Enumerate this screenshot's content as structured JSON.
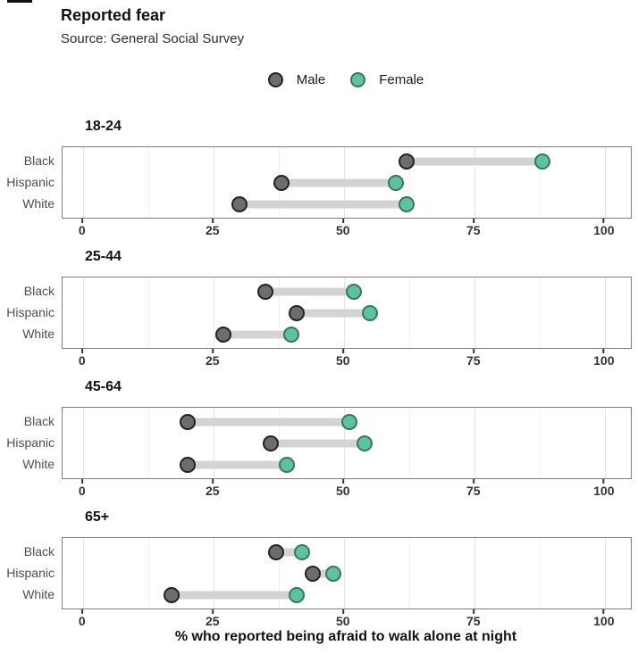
{
  "header": {
    "title": "Reported fear",
    "subtitle": "Source: General Social Survey"
  },
  "legend": {
    "items": [
      {
        "label": "Male",
        "fill": "#6d6d6d",
        "stroke": "#222222"
      },
      {
        "label": "Female",
        "fill": "#5cc3a1",
        "stroke": "#3a7563"
      }
    ]
  },
  "chart_data": {
    "type": "dumbbell",
    "title": "Reported fear",
    "subtitle": "Source: General Social Survey",
    "xlabel": "% who reported being afraid to walk alone at night",
    "x_ticks": [
      0,
      25,
      50,
      75,
      100
    ],
    "xlim": [
      0,
      100
    ],
    "grid": "vertical major gridlines at ticks plus minor gridlines at midpoints",
    "legend_position": "top-center",
    "categories": [
      "Black",
      "Hispanic",
      "White"
    ],
    "series_names": [
      "Male",
      "Female"
    ],
    "facets": [
      {
        "label": "18-24",
        "rows": [
          {
            "category": "Black",
            "male": 62,
            "female": 88
          },
          {
            "category": "Hispanic",
            "male": 38,
            "female": 60
          },
          {
            "category": "White",
            "male": 30,
            "female": 62
          }
        ]
      },
      {
        "label": "25-44",
        "rows": [
          {
            "category": "Black",
            "male": 35,
            "female": 52
          },
          {
            "category": "Hispanic",
            "male": 41,
            "female": 55
          },
          {
            "category": "White",
            "male": 27,
            "female": 40
          }
        ]
      },
      {
        "label": "45-64",
        "rows": [
          {
            "category": "Black",
            "male": 20,
            "female": 51
          },
          {
            "category": "Hispanic",
            "male": 36,
            "female": 54
          },
          {
            "category": "White",
            "male": 20,
            "female": 39
          }
        ]
      },
      {
        "label": "65+",
        "rows": [
          {
            "category": "Black",
            "male": 37,
            "female": 42
          },
          {
            "category": "Hispanic",
            "male": 44,
            "female": 48
          },
          {
            "category": "White",
            "male": 17,
            "female": 41
          }
        ]
      }
    ],
    "colors": {
      "male_fill": "#6d6d6d",
      "male_stroke": "#222222",
      "female_fill": "#5cc3a1",
      "female_stroke": "#3a7563",
      "connector": "#d3d3d3",
      "panel_border": "#7d7d7d",
      "major_grid": "#e3e3e3",
      "minor_grid": "#f1f1f1"
    }
  }
}
